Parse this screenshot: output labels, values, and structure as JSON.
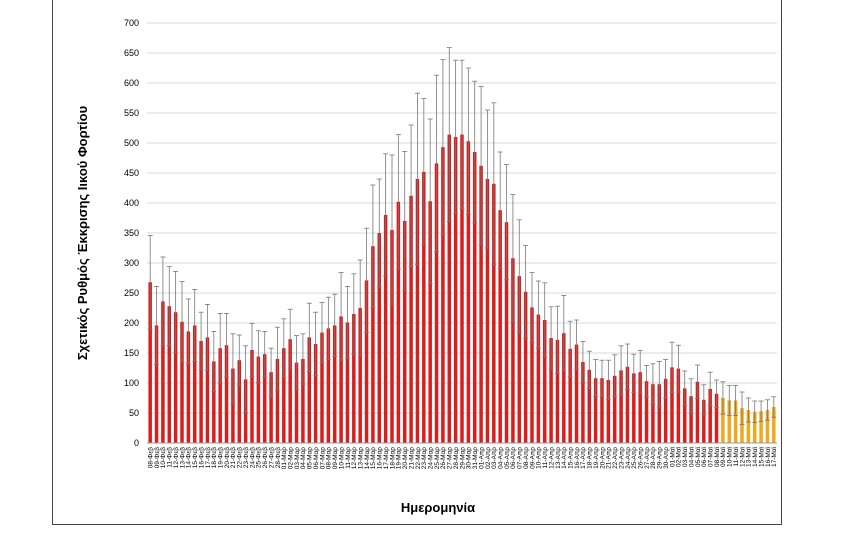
{
  "chart_data": {
    "type": "bar",
    "title": "",
    "xlabel": "Ημερομηνία",
    "ylabel": "Σχετικός Ρυθμός Έκκρισης Ιικού Φορτίου",
    "ylim": [
      0,
      700
    ],
    "yticks": [
      0,
      50,
      100,
      150,
      200,
      250,
      300,
      350,
      400,
      450,
      500,
      550,
      600,
      650,
      700
    ],
    "grid": true,
    "legend": "none",
    "colors": {
      "primary": "#d91e1e",
      "recent": "#f0a81c",
      "error_bar": "#777777"
    },
    "categories": [
      "08-Φεβ",
      "09-Φεβ",
      "10-Φεβ",
      "11-Φεβ",
      "12-Φεβ",
      "13-Φεβ",
      "14-Φεβ",
      "15-Φεβ",
      "16-Φεβ",
      "17-Φεβ",
      "18-Φεβ",
      "19-Φεβ",
      "20-Φεβ",
      "21-Φεβ",
      "22-Φεβ",
      "23-Φεβ",
      "24-Φεβ",
      "25-Φεβ",
      "26-Φεβ",
      "27-Φεβ",
      "28-Φεβ",
      "01-Μαρ",
      "02-Μαρ",
      "03-Μαρ",
      "04-Μαρ",
      "05-Μαρ",
      "06-Μαρ",
      "07-Μαρ",
      "08-Μαρ",
      "09-Μαρ",
      "10-Μαρ",
      "11-Μαρ",
      "12-Μαρ",
      "13-Μαρ",
      "14-Μαρ",
      "15-Μαρ",
      "16-Μαρ",
      "17-Μαρ",
      "18-Μαρ",
      "19-Μαρ",
      "20-Μαρ",
      "21-Μαρ",
      "22-Μαρ",
      "23-Μαρ",
      "24-Μαρ",
      "25-Μαρ",
      "26-Μαρ",
      "27-Μαρ",
      "28-Μαρ",
      "29-Μαρ",
      "30-Μαρ",
      "31-Μαρ",
      "01-Απρ",
      "02-Απρ",
      "03-Απρ",
      "04-Απρ",
      "05-Απρ",
      "06-Απρ",
      "07-Απρ",
      "08-Απρ",
      "09-Απρ",
      "10-Απρ",
      "11-Απρ",
      "12-Απρ",
      "13-Απρ",
      "14-Απρ",
      "15-Απρ",
      "16-Απρ",
      "17-Απρ",
      "18-Απρ",
      "19-Απρ",
      "20-Απρ",
      "21-Απρ",
      "22-Απρ",
      "23-Απρ",
      "24-Απρ",
      "25-Απρ",
      "26-Απρ",
      "27-Απρ",
      "28-Απρ",
      "29-Απρ",
      "30-Απρ",
      "01-Μαϊ",
      "02-Μαϊ",
      "03-Μαϊ",
      "04-Μαϊ",
      "05-Μαϊ",
      "06-Μαϊ",
      "07-Μαϊ",
      "08-Μαϊ",
      "09-Μαϊ",
      "10-Μαϊ",
      "11-Μαϊ",
      "12-Μαϊ",
      "13-Μαϊ",
      "14-Μαϊ",
      "15-Μαϊ",
      "16-Μαϊ",
      "17-Μαϊ"
    ],
    "values": [
      268,
      196,
      236,
      228,
      218,
      202,
      186,
      196,
      170,
      176,
      136,
      158,
      163,
      124,
      138,
      106,
      155,
      144,
      148,
      118,
      140,
      158,
      173,
      134,
      140,
      176,
      165,
      184,
      191,
      196,
      211,
      201,
      215,
      225,
      271,
      328,
      350,
      380,
      355,
      402,
      370,
      412,
      440,
      452,
      403,
      466,
      493,
      514,
      510,
      514,
      503,
      485,
      462,
      440,
      432,
      388,
      368,
      308,
      278,
      252,
      226,
      214,
      205,
      175,
      172,
      183,
      157,
      164,
      135,
      122,
      108,
      108,
      105,
      112,
      121,
      127,
      116,
      118,
      103,
      98,
      98,
      107,
      126,
      124,
      91,
      78,
      102,
      72,
      90,
      82,
      75,
      71,
      71,
      58,
      55,
      52,
      53,
      55,
      60
    ],
    "error_plus": [
      78,
      65,
      74,
      66,
      68,
      67,
      54,
      60,
      48,
      55,
      50,
      58,
      53,
      58,
      42,
      56,
      44,
      43,
      38,
      40,
      53,
      49,
      50,
      45,
      42,
      57,
      53,
      50,
      52,
      52,
      73,
      60,
      67,
      80,
      87,
      102,
      90,
      102,
      125,
      112,
      116,
      118,
      143,
      122,
      137,
      147,
      146,
      145,
      128,
      124,
      122,
      118,
      132,
      115,
      135,
      97,
      96,
      106,
      94,
      77,
      58,
      56,
      62,
      52,
      56,
      63,
      46,
      41,
      34,
      31,
      31,
      30,
      33,
      35,
      41,
      38,
      32,
      36,
      26,
      34,
      38,
      32,
      42,
      39,
      29,
      29,
      28,
      25,
      28,
      23,
      27,
      25,
      25,
      27,
      20,
      18,
      17,
      17,
      17
    ]
  }
}
